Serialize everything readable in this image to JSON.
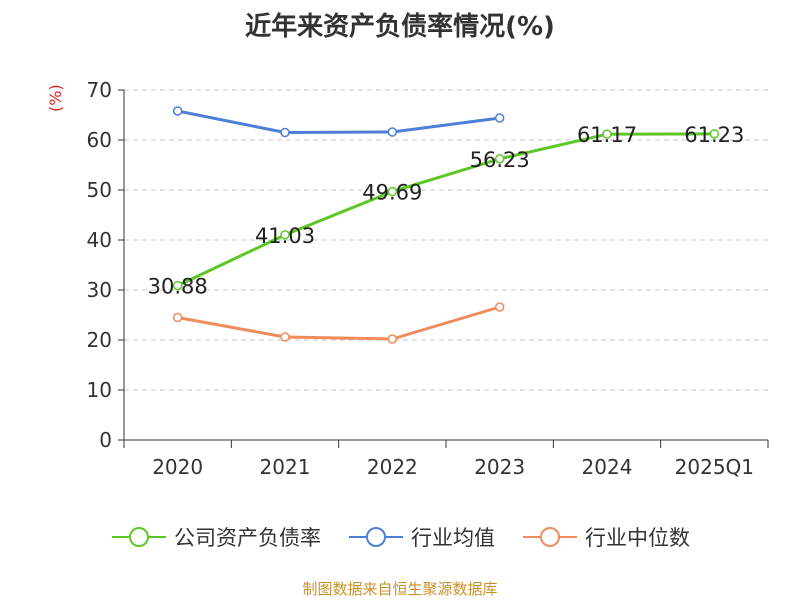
{
  "chart_data": {
    "type": "line",
    "title": "近年来资产负债率情况(%)",
    "ylabel": "(%)",
    "xlabel": "",
    "categories": [
      "2020",
      "2021",
      "2022",
      "2023",
      "2024",
      "2025Q1"
    ],
    "ylim": [
      0,
      70
    ],
    "yticks": [
      0,
      10,
      20,
      30,
      40,
      50,
      60,
      70
    ],
    "grid": true,
    "legend_position": "bottom",
    "series": [
      {
        "name": "公司资产负债率",
        "color": "#5ec626",
        "show_labels": true,
        "values": [
          30.88,
          41.03,
          49.69,
          56.23,
          61.17,
          61.23
        ]
      },
      {
        "name": "行业均值",
        "color": "#4d7fd8",
        "show_labels": false,
        "values": [
          65.8,
          61.5,
          61.6,
          64.4,
          null,
          null
        ]
      },
      {
        "name": "行业中位数",
        "color": "#f08c5a",
        "show_labels": false,
        "values": [
          24.5,
          20.6,
          20.2,
          26.6,
          null,
          null
        ]
      }
    ]
  },
  "source": "制图数据来自恒生聚源数据库"
}
